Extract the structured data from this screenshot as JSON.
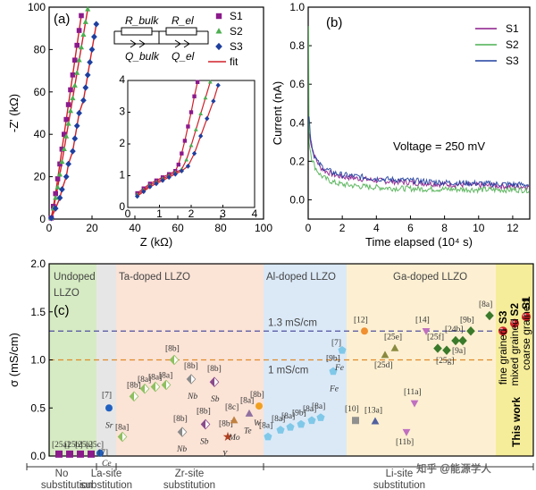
{
  "chart_data": [
    {
      "panel": "(a)",
      "type": "scatter",
      "xlabel": "Z (kΩ)",
      "ylabel": "-Z' (kΩ)",
      "xlim": [
        0,
        100
      ],
      "ylim": [
        0,
        100
      ],
      "xticks": [
        "0",
        "20",
        "40",
        "60",
        "80",
        "100"
      ],
      "yticks": [
        "0",
        "20",
        "40",
        "60",
        "80",
        "100"
      ],
      "circuit_labels": [
        "R_bulk",
        "R_el",
        "Q_bulk",
        "Q_el"
      ],
      "legend": [
        "S1",
        "S2",
        "S3",
        "fit"
      ],
      "series": [
        {
          "name": "S1",
          "color": "#8b1a8b",
          "marker": "square",
          "points": [
            [
              1,
              0.5
            ],
            [
              2,
              6
            ],
            [
              3,
              12
            ],
            [
              4,
              19
            ],
            [
              5,
              26
            ],
            [
              6,
              33
            ],
            [
              7,
              40
            ],
            [
              8,
              47
            ],
            [
              9,
              54
            ],
            [
              10,
              61
            ],
            [
              11,
              68
            ],
            [
              12,
              75
            ],
            [
              13,
              82
            ],
            [
              14,
              89
            ],
            [
              15,
              96
            ]
          ]
        },
        {
          "name": "S2",
          "color": "#4caf50",
          "marker": "triangle",
          "points": [
            [
              1,
              0.5
            ],
            [
              2,
              5
            ],
            [
              3,
              10
            ],
            [
              4,
              15
            ],
            [
              5,
              21
            ],
            [
              6,
              27
            ],
            [
              7,
              33
            ],
            [
              8,
              39
            ],
            [
              9,
              45
            ],
            [
              10,
              51
            ],
            [
              11,
              57
            ],
            [
              12,
              63
            ],
            [
              13,
              69
            ],
            [
              14,
              75
            ],
            [
              15,
              81
            ],
            [
              16,
              87
            ],
            [
              17,
              93
            ],
            [
              18,
              99
            ]
          ]
        },
        {
          "name": "S3",
          "color": "#1f3f9f",
          "marker": "diamond",
          "points": [
            [
              1,
              0.5
            ],
            [
              3,
              5
            ],
            [
              5,
              10
            ],
            [
              6,
              14
            ],
            [
              8,
              20
            ],
            [
              9,
              26
            ],
            [
              11,
              32
            ],
            [
              12,
              38
            ],
            [
              13,
              44
            ],
            [
              14,
              50
            ],
            [
              16,
              56
            ],
            [
              17,
              62
            ],
            [
              18,
              68
            ],
            [
              19,
              74
            ],
            [
              20,
              80
            ],
            [
              21,
              86
            ],
            [
              22,
              92
            ]
          ]
        }
      ],
      "fit_color": "#d0202a",
      "inset": {
        "xlim": [
          0,
          4
        ],
        "ylim": [
          0,
          4
        ],
        "xticks": [
          "0",
          "1",
          "2",
          "3",
          "4"
        ],
        "yticks": [
          "0",
          "1",
          "2",
          "3",
          "4"
        ],
        "series": [
          {
            "name": "S1",
            "points": [
              [
                0.3,
                0.45
              ],
              [
                0.5,
                0.6
              ],
              [
                0.7,
                0.75
              ],
              [
                0.9,
                0.85
              ],
              [
                1.1,
                0.95
              ],
              [
                1.3,
                1.05
              ],
              [
                1.5,
                1.15
              ],
              [
                1.6,
                1.35
              ],
              [
                1.7,
                1.7
              ],
              [
                1.8,
                2.1
              ],
              [
                1.9,
                2.55
              ],
              [
                2.0,
                3.0
              ],
              [
                2.1,
                3.5
              ],
              [
                2.2,
                3.95
              ]
            ]
          },
          {
            "name": "S2",
            "points": [
              [
                0.3,
                0.4
              ],
              [
                0.5,
                0.55
              ],
              [
                0.7,
                0.7
              ],
              [
                0.9,
                0.8
              ],
              [
                1.1,
                0.9
              ],
              [
                1.3,
                1.0
              ],
              [
                1.5,
                1.1
              ],
              [
                1.7,
                1.2
              ],
              [
                1.85,
                1.5
              ],
              [
                2.0,
                1.95
              ],
              [
                2.15,
                2.45
              ],
              [
                2.3,
                2.95
              ],
              [
                2.45,
                3.45
              ],
              [
                2.6,
                3.95
              ]
            ]
          },
          {
            "name": "S3",
            "points": [
              [
                0.3,
                0.35
              ],
              [
                0.5,
                0.5
              ],
              [
                0.7,
                0.65
              ],
              [
                0.9,
                0.75
              ],
              [
                1.1,
                0.85
              ],
              [
                1.3,
                0.95
              ],
              [
                1.5,
                1.05
              ],
              [
                1.7,
                1.15
              ],
              [
                1.9,
                1.3
              ],
              [
                2.1,
                1.7
              ],
              [
                2.3,
                2.25
              ],
              [
                2.5,
                2.8
              ],
              [
                2.7,
                3.35
              ],
              [
                2.85,
                3.85
              ]
            ]
          }
        ]
      }
    },
    {
      "panel": "(b)",
      "type": "line",
      "xlabel": "Time elapsed (10⁴ s)",
      "ylabel": "Current (nA)",
      "xlim": [
        0,
        13
      ],
      "ylim": [
        -0.1,
        1.0
      ],
      "xticks": [
        "0",
        "2",
        "4",
        "6",
        "8",
        "10",
        "12"
      ],
      "yticks": [
        "0.0",
        "0.2",
        "0.4",
        "0.6",
        "0.8",
        "1.0"
      ],
      "annotation": "Voltage = 250 mV",
      "legend": [
        "S1",
        "S2",
        "S3"
      ],
      "series": [
        {
          "name": "S1",
          "color": "#8b1a8b",
          "x": [
            0.05,
            0.2,
            0.4,
            0.7,
            1,
            1.5,
            2,
            3,
            4,
            5,
            6,
            7,
            8,
            9,
            10,
            11,
            12,
            13
          ],
          "y": [
            0.35,
            0.28,
            0.22,
            0.17,
            0.15,
            0.13,
            0.12,
            0.11,
            0.1,
            0.095,
            0.09,
            0.085,
            0.08,
            0.078,
            0.075,
            0.072,
            0.07,
            0.068
          ]
        },
        {
          "name": "S2",
          "color": "#4caf50",
          "x": [
            0.02,
            0.05,
            0.2,
            0.4,
            0.7,
            1,
            1.5,
            2,
            3,
            4,
            5,
            6,
            7,
            8,
            9,
            10,
            11,
            12,
            13
          ],
          "y": [
            0.9,
            0.3,
            0.22,
            0.17,
            0.13,
            0.11,
            0.09,
            0.08,
            0.07,
            0.065,
            0.06,
            0.058,
            0.056,
            0.055,
            0.054,
            0.053,
            0.052,
            0.052,
            0.051
          ]
        },
        {
          "name": "S3",
          "color": "#1f3f9f",
          "x": [
            0.05,
            0.15,
            0.3,
            0.6,
            1,
            1.5,
            2,
            3,
            4,
            5,
            6,
            7,
            8,
            9,
            10,
            11,
            12,
            13
          ],
          "y": [
            0.43,
            0.32,
            0.24,
            0.19,
            0.16,
            0.14,
            0.13,
            0.12,
            0.11,
            0.105,
            0.1,
            0.095,
            0.09,
            0.088,
            0.085,
            0.082,
            0.08,
            0.078
          ]
        }
      ]
    },
    {
      "panel": "(c)",
      "type": "scatter",
      "ylabel": "σ (mS/cm)",
      "ylim": [
        0,
        2.0
      ],
      "yticks": [
        "0.0",
        "0.5",
        "1.0",
        "1.5",
        "2.0"
      ],
      "hlines": [
        {
          "value": 1.3,
          "label": "1.3 mS/cm",
          "color": "#5050a0"
        },
        {
          "value": 1.0,
          "label": "1 mS/cm",
          "color": "#e08a2a"
        }
      ],
      "regions": [
        {
          "label": "Undoped LLZO",
          "color": "#d6ebc3"
        },
        {
          "label": "",
          "color": "#e6e6e6"
        },
        {
          "label": "Ta-doped LLZO",
          "color": "#fbe3d6"
        },
        {
          "label": "Al-doped LLZO",
          "color": "#dbe9f7"
        },
        {
          "label": "Ga-doped LLZO",
          "color": "#fdf0d2"
        },
        {
          "label": "",
          "color": "#f6ed9a"
        }
      ],
      "bottom_groups": [
        {
          "line1": "No",
          "line2": "substitution"
        },
        {
          "line1": "La-site",
          "line2": "substitution"
        },
        {
          "line1": "Zr-site",
          "line2": "substitution"
        },
        {
          "line1": "Li-site",
          "line2": "substitution"
        }
      ],
      "points": [
        {
          "ref": "[25a]",
          "y": 0.02,
          "marker": "square",
          "color": "#8b1a8b"
        },
        {
          "ref": "[25b]",
          "y": 0.02,
          "marker": "square",
          "color": "#8b1a8b"
        },
        {
          "ref": "[25a]",
          "y": 0.02,
          "marker": "square",
          "color": "#8b1a8b"
        },
        {
          "ref": "[25c]",
          "y": 0.02,
          "marker": "square",
          "color": "#8b1a8b"
        },
        {
          "ref": "[7] Ce",
          "y": 0.03,
          "marker": "circle",
          "color": "#2060c0"
        },
        {
          "ref": "[7] Sr",
          "y": 0.5,
          "marker": "circle",
          "color": "#2060c0"
        },
        {
          "ref": "[8a]",
          "y": 0.2,
          "marker": "diamondhalf",
          "color": "#8fbf60"
        },
        {
          "ref": "[8b]",
          "y": 0.62,
          "marker": "diamondhalf",
          "color": "#8fbf60"
        },
        {
          "ref": "[8a]",
          "y": 0.7,
          "marker": "diamondhalf",
          "color": "#8fbf60"
        },
        {
          "ref": "[8a]",
          "y": 0.72,
          "marker": "diamondhalf",
          "color": "#8fbf60"
        },
        {
          "ref": "[8a]",
          "y": 0.74,
          "marker": "diamondhalf",
          "color": "#8fbf60"
        },
        {
          "ref": "[8b]",
          "y": 1.0,
          "marker": "diamondhalf",
          "color": "#8fbf60"
        },
        {
          "ref": "[8b] Nb",
          "y": 0.8,
          "marker": "diamondhalf",
          "color": "#8a8a8a"
        },
        {
          "ref": "[8b] Sb",
          "y": 0.77,
          "marker": "diamondhalf",
          "color": "#8a4a8a"
        },
        {
          "ref": "[8b] Nb",
          "y": 0.25,
          "marker": "diamondhalf",
          "color": "#8a8a8a"
        },
        {
          "ref": "[8b] Sb",
          "y": 0.33,
          "marker": "diamondhalf",
          "color": "#8a4a8a"
        },
        {
          "ref": "[8b] Y",
          "y": 0.2,
          "marker": "star",
          "color": "#b04020"
        },
        {
          "ref": "[8c] Mo",
          "y": 0.37,
          "marker": "triangle",
          "color": "#c08040"
        },
        {
          "ref": "[8a] Te",
          "y": 0.44,
          "marker": "triangle",
          "color": "#9070a0"
        },
        {
          "ref": "[8b] W",
          "y": 0.52,
          "marker": "circle",
          "color": "#f0a020"
        },
        {
          "ref": "[8a]",
          "y": 0.2,
          "marker": "pentagon",
          "color": "#80c8e8"
        },
        {
          "ref": "[8a]",
          "y": 0.27,
          "marker": "pentagon",
          "color": "#80c8e8"
        },
        {
          "ref": "[8a]",
          "y": 0.3,
          "marker": "pentagon",
          "color": "#80c8e8"
        },
        {
          "ref": "[9b]",
          "y": 0.33,
          "marker": "pentagon",
          "color": "#80c8e8"
        },
        {
          "ref": "[8a]",
          "y": 0.37,
          "marker": "pentagon",
          "color": "#80c8e8"
        },
        {
          "ref": "[8a]",
          "y": 0.4,
          "marker": "pentagon",
          "color": "#80c8e8"
        },
        {
          "ref": "[9b] Fe",
          "y": 0.88,
          "marker": "pentagon",
          "color": "#80c8e8"
        },
        {
          "ref": "Fe [7]",
          "y": 1.1,
          "marker": "pentagon",
          "color": "#80c8e8"
        },
        {
          "ref": "[10]",
          "y": 0.37,
          "marker": "square",
          "color": "#909090"
        },
        {
          "ref": "[13a]",
          "y": 0.36,
          "marker": "triangle",
          "color": "#5060a0"
        },
        {
          "ref": "[12]",
          "y": 1.3,
          "marker": "circle",
          "color": "#f09030"
        },
        {
          "ref": "[11a]",
          "y": 0.55,
          "marker": "triangledown",
          "color": "#c070c0"
        },
        {
          "ref": "[11b]",
          "y": 0.25,
          "marker": "triangledown",
          "color": "#c070c0"
        },
        {
          "ref": "[14]",
          "y": 1.3,
          "marker": "triangledown",
          "color": "#c070c0"
        },
        {
          "ref": "[25d]",
          "y": 1.05,
          "marker": "triangle",
          "color": "#8a8a40"
        },
        {
          "ref": "[25e]",
          "y": 1.12,
          "marker": "triangle",
          "color": "#8a8a40"
        },
        {
          "ref": "[25f]",
          "y": 1.12,
          "marker": "diamond",
          "color": "#3a7a2a"
        },
        {
          "ref": "[25g]",
          "y": 1.1,
          "marker": "diamond",
          "color": "#3a7a2a"
        },
        {
          "ref": "[24b]",
          "y": 1.2,
          "marker": "diamond",
          "color": "#3a7a2a"
        },
        {
          "ref": "[9a]",
          "y": 1.2,
          "marker": "diamond",
          "color": "#3a7a2a"
        },
        {
          "ref": "[9b]",
          "y": 1.3,
          "marker": "diamond",
          "color": "#3a7a2a"
        },
        {
          "ref": "[8a]",
          "y": 1.46,
          "marker": "diamond",
          "color": "#3a7a2a"
        },
        {
          "ref": "S3",
          "y": 1.3,
          "marker": "ball",
          "color": "#d0202a"
        },
        {
          "ref": "S2",
          "y": 1.38,
          "marker": "ball",
          "color": "#d0202a"
        },
        {
          "ref": "S1",
          "y": 1.45,
          "marker": "ball",
          "color": "#d0202a"
        }
      ],
      "this_work": {
        "title": "This work",
        "labels": [
          "fine grained",
          "mixed grained",
          "coarse grained"
        ],
        "samples": [
          "S3",
          "S2",
          "S1"
        ]
      }
    }
  ],
  "watermark": "知乎 @能源学人"
}
